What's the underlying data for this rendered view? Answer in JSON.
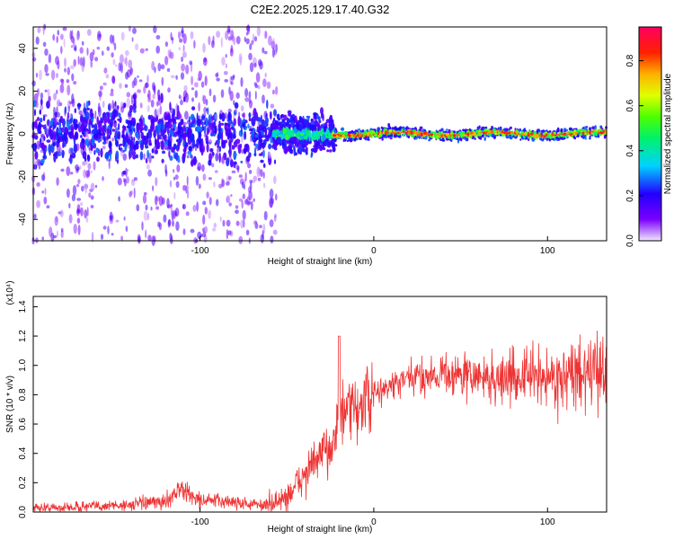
{
  "title": "C2E2.2025.129.17.40.G32",
  "colors": {
    "series": "#ee3333",
    "frame": "#000000",
    "background": "#ffffff"
  },
  "chart_data": [
    {
      "type": "heatmap",
      "xlabel": "Height of straight line (km)",
      "ylabel": "Frequency (Hz)",
      "xlim": [
        -196,
        134
      ],
      "ylim": [
        -50,
        50
      ],
      "xticks": [
        -100,
        0,
        100
      ],
      "xtick_labels": [
        "-100",
        "0",
        "100"
      ],
      "yticks": [
        -40,
        -20,
        0,
        20,
        40
      ],
      "ytick_labels": [
        "-40",
        "-20",
        "0",
        "20",
        "40"
      ],
      "colorbar": {
        "label": "Normalized spectral amplitude",
        "range": [
          0,
          0.95
        ],
        "ticks": [
          0.0,
          0.2,
          0.4,
          0.6,
          0.8
        ],
        "tick_labels": [
          "0.0",
          "0.2",
          "0.4",
          "0.6",
          "0.8"
        ],
        "colormap": "rainbow (violet → blue → cyan → green → yellow → red → magenta)"
      },
      "description_segments": [
        {
          "x_range": [
            -196,
            -56
          ],
          "freq_spread_hz": 50,
          "amplitude": "low, scattered"
        },
        {
          "x_range": [
            -56,
            -24
          ],
          "freq_spread_hz": 12,
          "amplitude": "medium"
        },
        {
          "x_range": [
            -24,
            134
          ],
          "freq_center_hz": 0,
          "freq_spread_hz": 3,
          "amplitude": "high, concentrated near 0 Hz"
        }
      ]
    },
    {
      "type": "line",
      "xlabel": "Height of straight line (km)",
      "ylabel": "SNR (10 * v/v)",
      "y_multiplier": "(x10⁴)",
      "xlim": [
        -196,
        134
      ],
      "ylim": [
        0,
        1.47
      ],
      "xticks": [
        -100,
        0,
        100
      ],
      "xtick_labels": [
        "-100",
        "0",
        "100"
      ],
      "yticks": [
        0.0,
        0.2,
        0.4,
        0.6,
        0.8,
        1.0,
        1.2,
        1.4
      ],
      "ytick_labels": [
        "0.0",
        "0.2",
        "0.4",
        "0.6",
        "0.8",
        "1.0",
        "1.2",
        "1.4"
      ],
      "series": [
        {
          "x": [
            -196,
            -180,
            -160,
            -140,
            -120,
            -112,
            -100,
            -80,
            -70,
            -60,
            -50,
            -45,
            -40,
            -35,
            -30,
            -25,
            -20,
            -15,
            -10,
            -5,
            0,
            10,
            20,
            30,
            40,
            50,
            60,
            70,
            80,
            90,
            100,
            110,
            120,
            130,
            134
          ],
          "y": [
            0.03,
            0.03,
            0.04,
            0.05,
            0.07,
            0.16,
            0.08,
            0.07,
            0.05,
            0.05,
            0.1,
            0.18,
            0.25,
            0.33,
            0.38,
            0.45,
            0.62,
            0.68,
            0.7,
            0.75,
            0.8,
            0.86,
            0.9,
            0.93,
            0.95,
            0.93,
            0.92,
            0.9,
            0.92,
            0.93,
            0.92,
            0.91,
            0.93,
            0.95,
            0.96
          ]
        }
      ],
      "annotations": [
        {
          "x": -20,
          "y": 1.2,
          "note": "spike"
        }
      ]
    }
  ]
}
